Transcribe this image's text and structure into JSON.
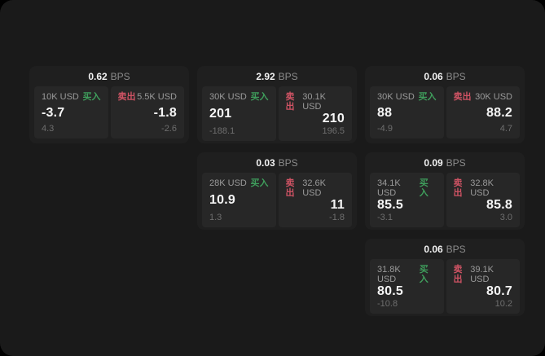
{
  "colors": {
    "buy": "#3f9e5c",
    "sell": "#cf5364"
  },
  "labels": {
    "bps": "BPS",
    "buy": "买入",
    "sell": "卖出"
  },
  "cards": [
    {
      "bps": "0.62",
      "buy": {
        "size": "10K USD",
        "value": "-3.7",
        "sub": "4.3"
      },
      "sell": {
        "size": "5.5K USD",
        "value": "-1.8",
        "sub": "-2.6"
      }
    },
    {
      "bps": "2.92",
      "buy": {
        "size": "30K USD",
        "value": "201",
        "sub": "-188.1"
      },
      "sell": {
        "size": "30.1K USD",
        "value": "210",
        "sub": "196.5"
      }
    },
    {
      "bps": "0.06",
      "buy": {
        "size": "30K USD",
        "value": "88",
        "sub": "-4.9"
      },
      "sell": {
        "size": "30K USD",
        "value": "88.2",
        "sub": "4.7"
      }
    },
    {
      "bps": "0.03",
      "buy": {
        "size": "28K USD",
        "value": "10.9",
        "sub": "1.3"
      },
      "sell": {
        "size": "32.6K USD",
        "value": "11",
        "sub": "-1.8"
      }
    },
    {
      "bps": "0.09",
      "buy": {
        "size": "34.1K USD",
        "value": "85.5",
        "sub": "-3.1"
      },
      "sell": {
        "size": "32.8K USD",
        "value": "85.8",
        "sub": "3.0"
      }
    },
    {
      "bps": "0.06",
      "buy": {
        "size": "31.8K USD",
        "value": "80.5",
        "sub": "-10.8"
      },
      "sell": {
        "size": "39.1K USD",
        "value": "80.7",
        "sub": "10.2"
      }
    }
  ]
}
